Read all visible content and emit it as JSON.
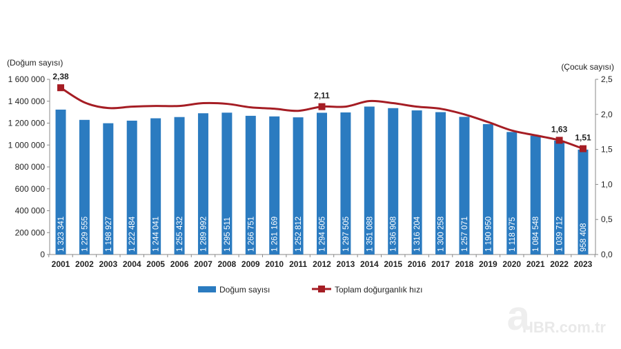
{
  "chart_data": {
    "type": "bar+line",
    "categories": [
      "2001",
      "2002",
      "2003",
      "2004",
      "2005",
      "2006",
      "2007",
      "2008",
      "2009",
      "2010",
      "2011",
      "2012",
      "2013",
      "2014",
      "2015",
      "2016",
      "2017",
      "2018",
      "2019",
      "2020",
      "2021",
      "2022",
      "2023"
    ],
    "series": [
      {
        "name": "Doğum sayısı",
        "type": "bar",
        "axis": "left",
        "color": "#2b7bc0",
        "values": [
          1323341,
          1229555,
          1198927,
          1222484,
          1244041,
          1255432,
          1289992,
          1295511,
          1266751,
          1261169,
          1252812,
          1294605,
          1297505,
          1351088,
          1336908,
          1316204,
          1300258,
          1257071,
          1190950,
          1118975,
          1084548,
          1039712,
          958408
        ],
        "data_labels": [
          "1 323 341",
          "1 229 555",
          "1 198 927",
          "1 222 484",
          "1 244 041",
          "1 255 432",
          "1 289 992",
          "1 295 511",
          "1 266 751",
          "1 261 169",
          "1 252 812",
          "1 294 605",
          "1 297 505",
          "1 351 088",
          "1 336 908",
          "1 316 204",
          "1 300 258",
          "1 257 071",
          "1 190 950",
          "1 118 975",
          "1 084 548",
          "1 039 712",
          "958 408"
        ]
      },
      {
        "name": "Toplam doğurganlık hızı",
        "type": "line",
        "axis": "right",
        "color": "#a51d24",
        "values": [
          2.38,
          2.17,
          2.09,
          2.11,
          2.12,
          2.12,
          2.16,
          2.15,
          2.1,
          2.08,
          2.05,
          2.11,
          2.11,
          2.19,
          2.16,
          2.11,
          2.08,
          2.0,
          1.89,
          1.77,
          1.7,
          1.63,
          1.51
        ],
        "markers": [
          {
            "category": "2001",
            "label": "2,38"
          },
          {
            "category": "2012",
            "label": "2,11"
          },
          {
            "category": "2022",
            "label": "1,63"
          },
          {
            "category": "2023",
            "label": "1,51"
          }
        ]
      }
    ],
    "ylabel_left": "(Doğum sayısı)",
    "ylabel_right": "(Çocuk sayısı)",
    "ylim_left": [
      0,
      1600000
    ],
    "ylim_right": [
      0,
      2.5
    ],
    "yticks_left": [
      "0",
      "200 000",
      "400 000",
      "600 000",
      "800 000",
      "1 000 000",
      "1 200 000",
      "1 400 000",
      "1 600 000"
    ],
    "yticks_right": [
      "0,0",
      "0,5",
      "1,0",
      "1,5",
      "2,0",
      "2,5"
    ],
    "grid": false,
    "legend_position": "bottom"
  },
  "watermark": "HBR.com.tr"
}
